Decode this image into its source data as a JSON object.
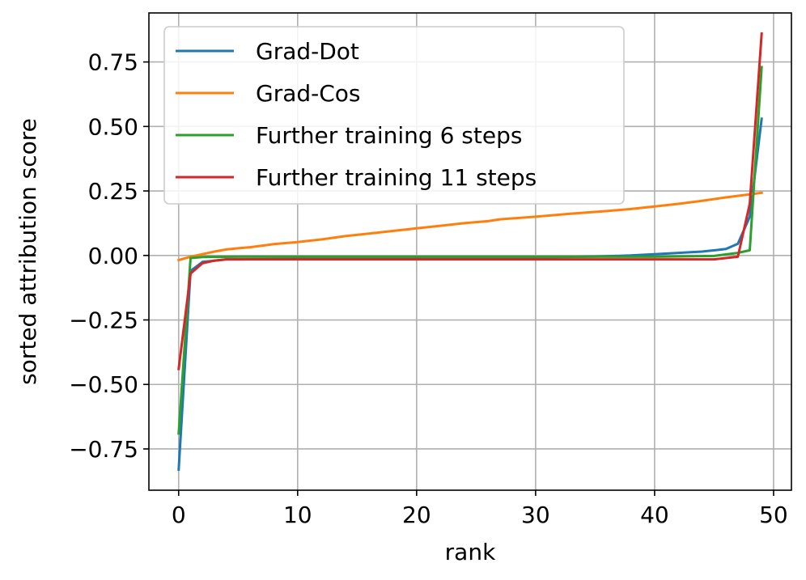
{
  "chart_data": {
    "type": "line",
    "xlabel": "rank",
    "ylabel": "sorted attribution score",
    "xlim": [
      -2.5,
      51.5
    ],
    "ylim": [
      -0.91,
      0.94
    ],
    "xticks": [
      0,
      10,
      20,
      30,
      40,
      50
    ],
    "xtick_labels": [
      "0",
      "10",
      "20",
      "30",
      "40",
      "50"
    ],
    "yticks": [
      -0.75,
      -0.5,
      -0.25,
      0.0,
      0.25,
      0.5,
      0.75
    ],
    "ytick_labels": [
      "−0.75",
      "−0.50",
      "−0.25",
      "0.00",
      "0.25",
      "0.50",
      "0.75"
    ],
    "grid": true,
    "legend_position": "top-left",
    "series": [
      {
        "name": "Grad-Dot",
        "color": "#1f77b4",
        "x": [
          0,
          1,
          2,
          3,
          4,
          5,
          10,
          15,
          20,
          25,
          30,
          35,
          38,
          40,
          42,
          44,
          46,
          47,
          48,
          49
        ],
        "y": [
          -0.83,
          -0.06,
          -0.025,
          -0.02,
          -0.015,
          -0.015,
          -0.013,
          -0.012,
          -0.011,
          -0.01,
          -0.008,
          -0.004,
          0.0,
          0.005,
          0.01,
          0.015,
          0.025,
          0.045,
          0.15,
          0.53
        ]
      },
      {
        "name": "Grad-Cos",
        "color": "#ff7f0e",
        "x": [
          0,
          1,
          2,
          3,
          4,
          5,
          6,
          7,
          8,
          9,
          10,
          12,
          14,
          16,
          18,
          20,
          22,
          24,
          26,
          27,
          30,
          33,
          36,
          38,
          40,
          42,
          44,
          46,
          48,
          49
        ],
        "y": [
          -0.018,
          -0.005,
          0.005,
          0.015,
          0.023,
          0.028,
          0.032,
          0.038,
          0.044,
          0.048,
          0.052,
          0.062,
          0.075,
          0.085,
          0.095,
          0.105,
          0.115,
          0.125,
          0.133,
          0.14,
          0.15,
          0.162,
          0.172,
          0.18,
          0.19,
          0.2,
          0.212,
          0.225,
          0.237,
          0.243
        ]
      },
      {
        "name": "Further training 6 steps",
        "color": "#2ca02c",
        "x": [
          0,
          1,
          2,
          5,
          10,
          20,
          30,
          40,
          45,
          47,
          48,
          49
        ],
        "y": [
          -0.69,
          -0.01,
          -0.006,
          -0.005,
          -0.005,
          -0.005,
          -0.005,
          -0.005,
          -0.002,
          0.01,
          0.02,
          0.73
        ]
      },
      {
        "name": "Further training 11 steps",
        "color": "#d62728",
        "x": [
          0,
          1,
          2,
          3,
          4,
          10,
          20,
          30,
          40,
          45,
          46,
          47,
          48,
          49
        ],
        "y": [
          -0.44,
          -0.07,
          -0.03,
          -0.02,
          -0.015,
          -0.015,
          -0.015,
          -0.015,
          -0.015,
          -0.015,
          -0.01,
          -0.005,
          0.2,
          0.86
        ]
      }
    ]
  }
}
